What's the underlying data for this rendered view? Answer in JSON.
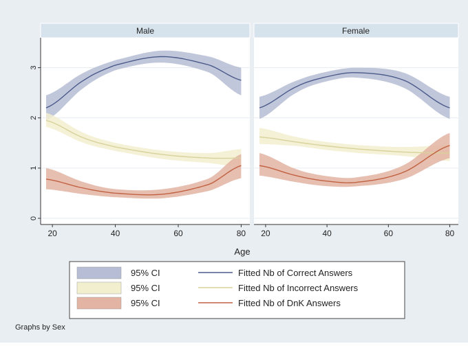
{
  "chart_data": {
    "type": "line",
    "xlabel": "Age",
    "note": "Graphs by Sex",
    "x_ticks": [
      20,
      40,
      60,
      80
    ],
    "y_ticks": [
      0,
      1,
      2,
      3
    ],
    "xlim": [
      18,
      81
    ],
    "ylim": [
      0,
      3.5
    ],
    "legend_position": "bottom",
    "colors": {
      "correct_line": "#4a5a8a",
      "correct_ci": "#b6bdd4",
      "incorrect_line": "#d8d29a",
      "incorrect_ci": "#f2efcf",
      "dnk_line": "#c06040",
      "dnk_ci": "#e3b4a3"
    },
    "legend": [
      {
        "ci_label": "95% CI",
        "line_label": "Fitted Nb of Correct Answers",
        "series": "correct"
      },
      {
        "ci_label": "95% CI",
        "line_label": "Fitted Nb of Incorrect Answers",
        "series": "incorrect"
      },
      {
        "ci_label": "95% CI",
        "line_label": "Fitted Nb of DnK Answers",
        "series": "dnk"
      }
    ],
    "panels": [
      {
        "title": "Male",
        "x": [
          18,
          30,
          40,
          55,
          70,
          80
        ],
        "series": {
          "correct": {
            "fit": [
              2.2,
              2.75,
              3.05,
              3.22,
              3.05,
              2.75
            ],
            "lo": [
              1.95,
              2.6,
              2.95,
              3.1,
              2.9,
              2.45
            ],
            "hi": [
              2.45,
              2.9,
              3.15,
              3.34,
              3.22,
              3.0
            ]
          },
          "incorrect": {
            "fit": [
              1.95,
              1.6,
              1.42,
              1.27,
              1.2,
              1.2
            ],
            "lo": [
              1.82,
              1.5,
              1.34,
              1.18,
              1.1,
              1.02
            ],
            "hi": [
              2.1,
              1.7,
              1.5,
              1.35,
              1.3,
              1.38
            ]
          },
          "dnk": {
            "fit": [
              0.78,
              0.6,
              0.5,
              0.48,
              0.68,
              1.05
            ],
            "lo": [
              0.58,
              0.48,
              0.42,
              0.4,
              0.55,
              0.8
            ],
            "hi": [
              1.0,
              0.72,
              0.58,
              0.58,
              0.8,
              1.28
            ]
          }
        }
      },
      {
        "title": "Female",
        "x": [
          18,
          30,
          40,
          50,
          65,
          80
        ],
        "series": {
          "correct": {
            "fit": [
              2.2,
              2.62,
              2.82,
              2.9,
              2.75,
              2.2
            ],
            "lo": [
              1.98,
              2.5,
              2.73,
              2.8,
              2.6,
              1.98
            ],
            "hi": [
              2.42,
              2.74,
              2.92,
              3.0,
              2.9,
              2.42
            ]
          },
          "incorrect": {
            "fit": [
              1.62,
              1.52,
              1.44,
              1.38,
              1.32,
              1.3
            ],
            "lo": [
              1.48,
              1.44,
              1.36,
              1.3,
              1.24,
              1.14
            ],
            "hi": [
              1.8,
              1.62,
              1.52,
              1.46,
              1.42,
              1.46
            ]
          },
          "dnk": {
            "fit": [
              1.05,
              0.85,
              0.74,
              0.72,
              0.92,
              1.45
            ],
            "lo": [
              0.85,
              0.72,
              0.64,
              0.64,
              0.78,
              1.2
            ],
            "hi": [
              1.3,
              0.98,
              0.84,
              0.82,
              1.06,
              1.7
            ]
          }
        }
      }
    ]
  }
}
